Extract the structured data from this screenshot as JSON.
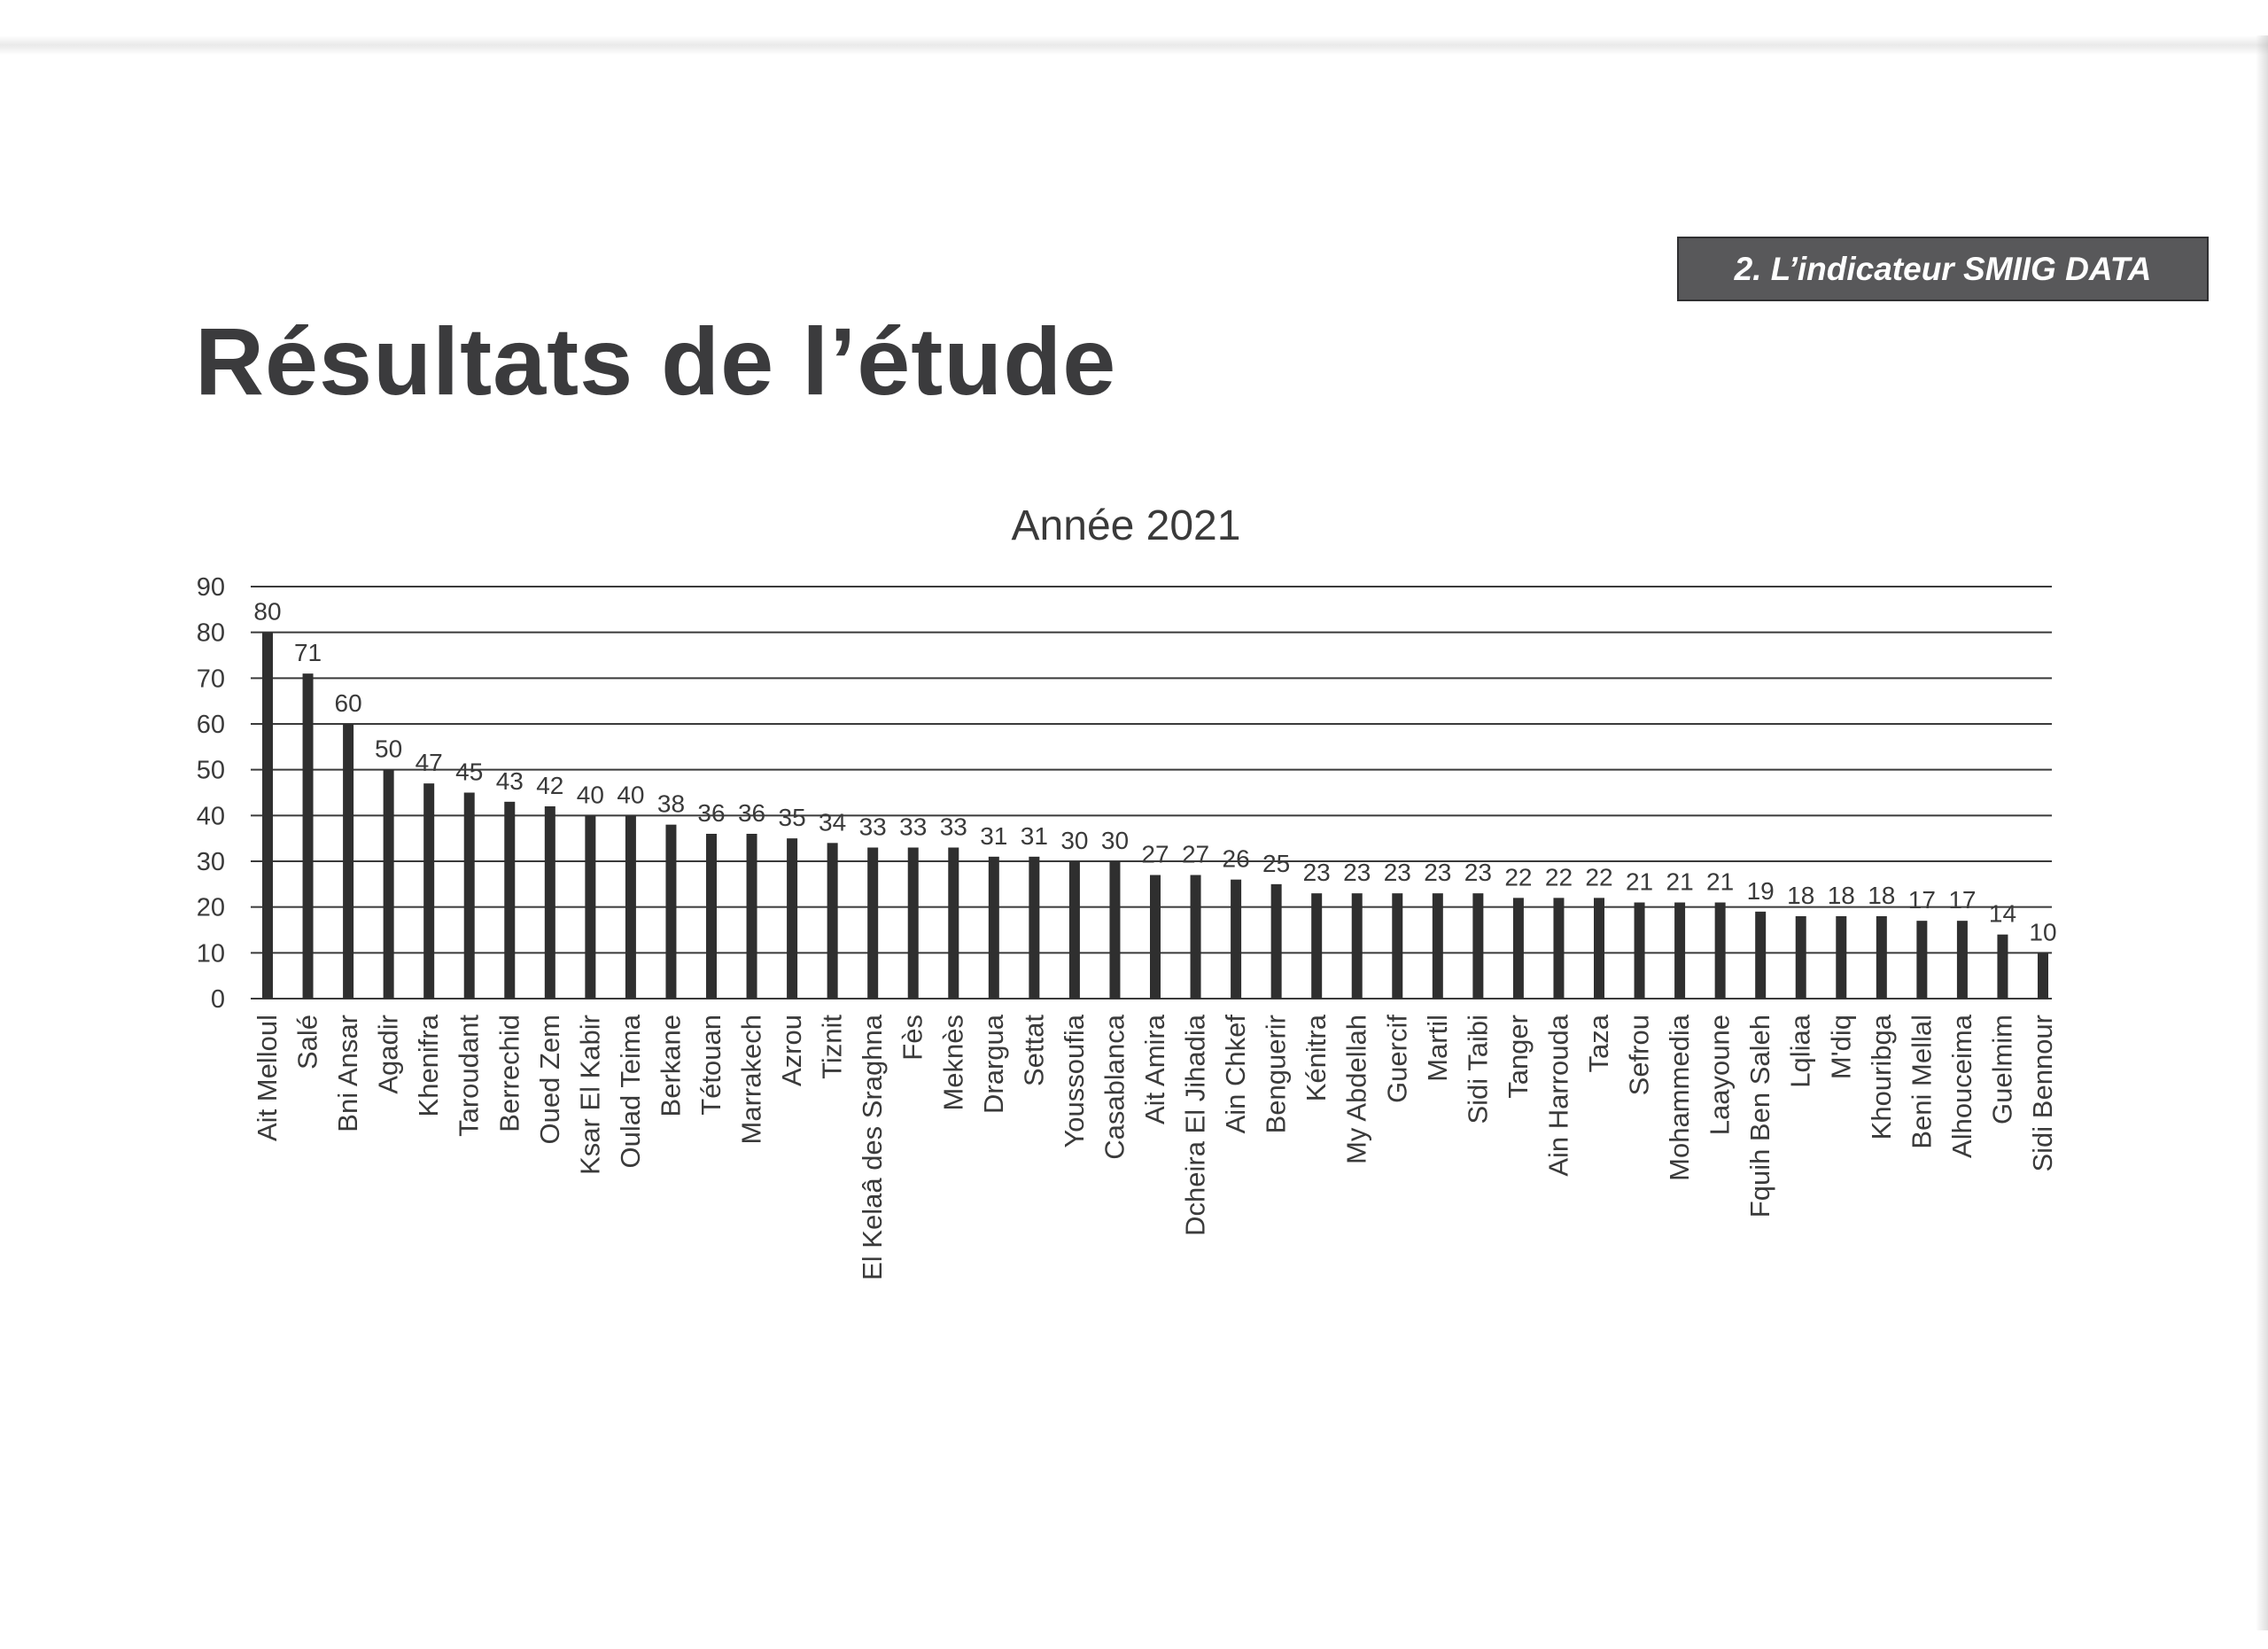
{
  "header": {
    "section": "2. L’indicateur SMIIG DATA",
    "title": "Résultats de l’étude"
  },
  "colors": {
    "bar": "#2f2f2f",
    "grid": "#3a3a3a",
    "text": "#3a3a3a",
    "badge": "#58585a"
  },
  "chart_data": {
    "type": "bar",
    "title": "Année 2021",
    "xlabel": "",
    "ylabel": "",
    "ylim": [
      0,
      90
    ],
    "yticks": [
      0,
      10,
      20,
      30,
      40,
      50,
      60,
      70,
      80,
      90
    ],
    "grid": true,
    "legend": "none",
    "categories": [
      "Ait Melloul",
      "Salé",
      "Bni Ansar",
      "Agadir",
      "Khenifra",
      "Taroudant",
      "Berrechid",
      "Oued Zem",
      "Ksar El Kabir",
      "Oulad Teima",
      "Berkane",
      "Tétouan",
      "Marrakech",
      "Azrou",
      "Tiznit",
      "El Kelaâ des Sraghna",
      "Fès",
      "Meknès",
      "Drargua",
      "Settat",
      "Youssoufia",
      "Casablanca",
      "Ait Amira",
      "Dcheira El Jihadia",
      "Ain Chkef",
      "Benguerir",
      "Kénitra",
      "My Abdellah",
      "Guercif",
      "Martil",
      "Sidi Taibi",
      "Tanger",
      "Ain Harrouda",
      "Taza",
      "Sefrou",
      "Mohammedia",
      "Laayoune",
      "Fquih Ben Saleh",
      "Lqliaa",
      "M'diq",
      "Khouribga",
      "Beni Mellal",
      "Alhouceima",
      "Guelmim",
      "Sidi Bennour"
    ],
    "values": [
      80,
      71,
      60,
      50,
      47,
      45,
      43,
      42,
      40,
      40,
      38,
      36,
      36,
      35,
      34,
      33,
      33,
      33,
      31,
      31,
      30,
      30,
      27,
      27,
      26,
      25,
      23,
      23,
      23,
      23,
      23,
      22,
      22,
      22,
      21,
      21,
      21,
      19,
      18,
      18,
      18,
      17,
      17,
      14,
      10
    ]
  }
}
